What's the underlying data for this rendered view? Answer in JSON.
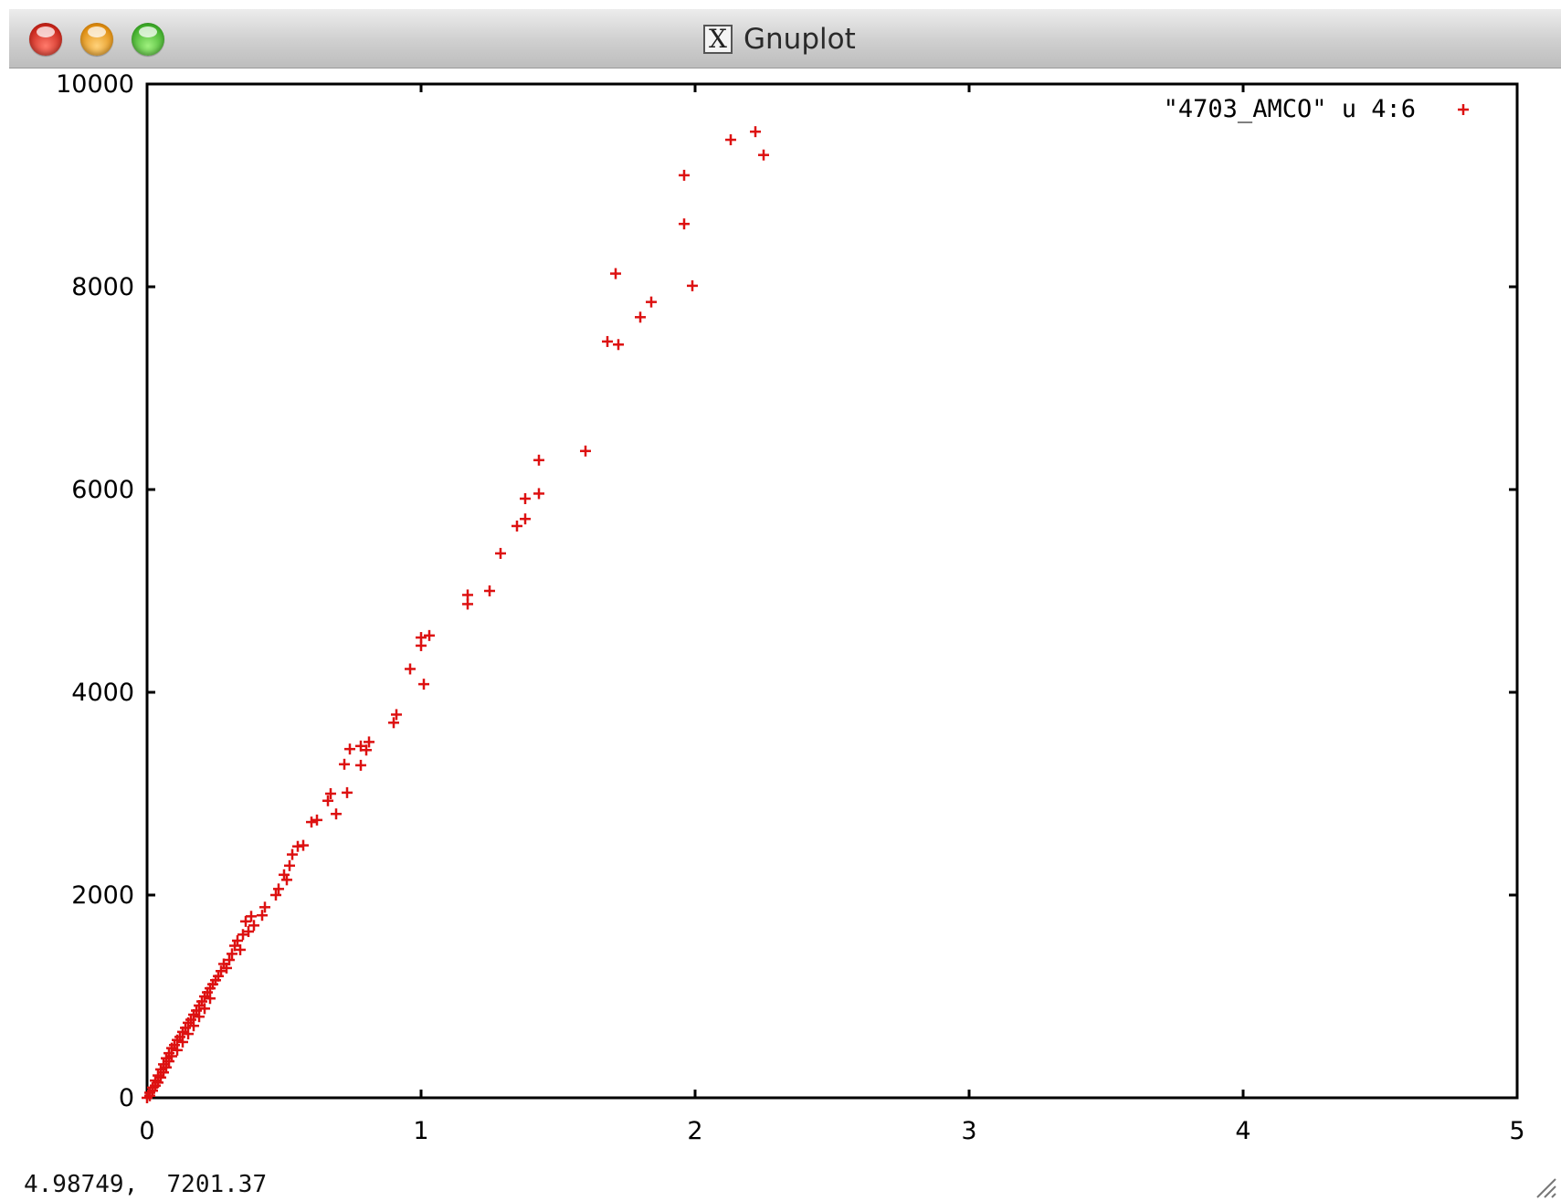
{
  "window": {
    "title": "Gnuplot",
    "app_icon": "x11-icon",
    "app_icon_glyph": "X"
  },
  "status": {
    "coords": "4.98749,  7201.37"
  },
  "colors": {
    "series": "#dd1111",
    "axis": "#000000",
    "background": "#ffffff"
  },
  "chart_data": {
    "type": "scatter",
    "title": "",
    "xlabel": "",
    "ylabel": "",
    "xlim": [
      0,
      5
    ],
    "ylim": [
      0,
      10000
    ],
    "x_ticks": [
      0,
      1,
      2,
      3,
      4,
      5
    ],
    "y_ticks": [
      0,
      2000,
      4000,
      6000,
      8000,
      10000
    ],
    "grid": false,
    "legend": "top-right",
    "series": [
      {
        "name": "\"4703_AMCO\" u 4:6",
        "marker": "+",
        "points": [
          [
            2.22,
            9530
          ],
          [
            2.13,
            9450
          ],
          [
            2.25,
            9300
          ],
          [
            1.96,
            9100
          ],
          [
            1.96,
            8620
          ],
          [
            1.71,
            8130
          ],
          [
            1.99,
            8010
          ],
          [
            1.84,
            7850
          ],
          [
            1.8,
            7700
          ],
          [
            1.68,
            7460
          ],
          [
            1.72,
            7430
          ],
          [
            1.43,
            6290
          ],
          [
            1.6,
            6380
          ],
          [
            1.43,
            5960
          ],
          [
            1.38,
            5910
          ],
          [
            1.38,
            5710
          ],
          [
            1.35,
            5640
          ],
          [
            1.29,
            5370
          ],
          [
            1.25,
            5000
          ],
          [
            1.17,
            4960
          ],
          [
            1.17,
            4870
          ],
          [
            1.03,
            4560
          ],
          [
            1.0,
            4540
          ],
          [
            1.0,
            4460
          ],
          [
            0.96,
            4230
          ],
          [
            1.01,
            4080
          ],
          [
            0.91,
            3780
          ],
          [
            0.9,
            3700
          ],
          [
            0.81,
            3510
          ],
          [
            0.78,
            3470
          ],
          [
            0.74,
            3440
          ],
          [
            0.8,
            3430
          ],
          [
            0.72,
            3290
          ],
          [
            0.78,
            3280
          ],
          [
            0.73,
            3010
          ],
          [
            0.67,
            3000
          ],
          [
            0.66,
            2930
          ],
          [
            0.69,
            2800
          ],
          [
            0.62,
            2740
          ],
          [
            0.6,
            2720
          ],
          [
            0.57,
            2490
          ],
          [
            0.55,
            2480
          ],
          [
            0.53,
            2400
          ],
          [
            0.52,
            2290
          ],
          [
            0.5,
            2200
          ],
          [
            0.51,
            2150
          ],
          [
            0.48,
            2060
          ],
          [
            0.47,
            2000
          ],
          [
            0.43,
            1880
          ],
          [
            0.42,
            1800
          ],
          [
            0.38,
            1790
          ],
          [
            0.36,
            1740
          ],
          [
            0.39,
            1700
          ],
          [
            0.37,
            1640
          ],
          [
            0.35,
            1610
          ],
          [
            0.33,
            1550
          ],
          [
            0.32,
            1500
          ],
          [
            0.34,
            1460
          ],
          [
            0.31,
            1420
          ],
          [
            0.3,
            1360
          ],
          [
            0.28,
            1320
          ],
          [
            0.29,
            1280
          ],
          [
            0.27,
            1250
          ],
          [
            0.26,
            1200
          ],
          [
            0.25,
            1160
          ],
          [
            0.24,
            1120
          ],
          [
            0.23,
            1080
          ],
          [
            0.22,
            1040
          ],
          [
            0.21,
            1000
          ],
          [
            0.23,
            980
          ],
          [
            0.2,
            950
          ],
          [
            0.19,
            910
          ],
          [
            0.21,
            880
          ],
          [
            0.18,
            860
          ],
          [
            0.17,
            820
          ],
          [
            0.19,
            800
          ],
          [
            0.16,
            770
          ],
          [
            0.15,
            740
          ],
          [
            0.17,
            710
          ],
          [
            0.14,
            690
          ],
          [
            0.13,
            650
          ],
          [
            0.15,
            630
          ],
          [
            0.12,
            600
          ],
          [
            0.11,
            570
          ],
          [
            0.13,
            550
          ],
          [
            0.1,
            520
          ],
          [
            0.09,
            490
          ],
          [
            0.11,
            470
          ],
          [
            0.08,
            440
          ],
          [
            0.09,
            410
          ],
          [
            0.07,
            390
          ],
          [
            0.08,
            360
          ],
          [
            0.06,
            330
          ],
          [
            0.07,
            300
          ],
          [
            0.05,
            280
          ],
          [
            0.06,
            250
          ],
          [
            0.04,
            220
          ],
          [
            0.05,
            200
          ],
          [
            0.03,
            170
          ],
          [
            0.04,
            150
          ],
          [
            0.03,
            120
          ],
          [
            0.02,
            100
          ],
          [
            0.02,
            70
          ],
          [
            0.01,
            50
          ],
          [
            0.01,
            20
          ],
          [
            0.0,
            0
          ]
        ]
      }
    ]
  }
}
